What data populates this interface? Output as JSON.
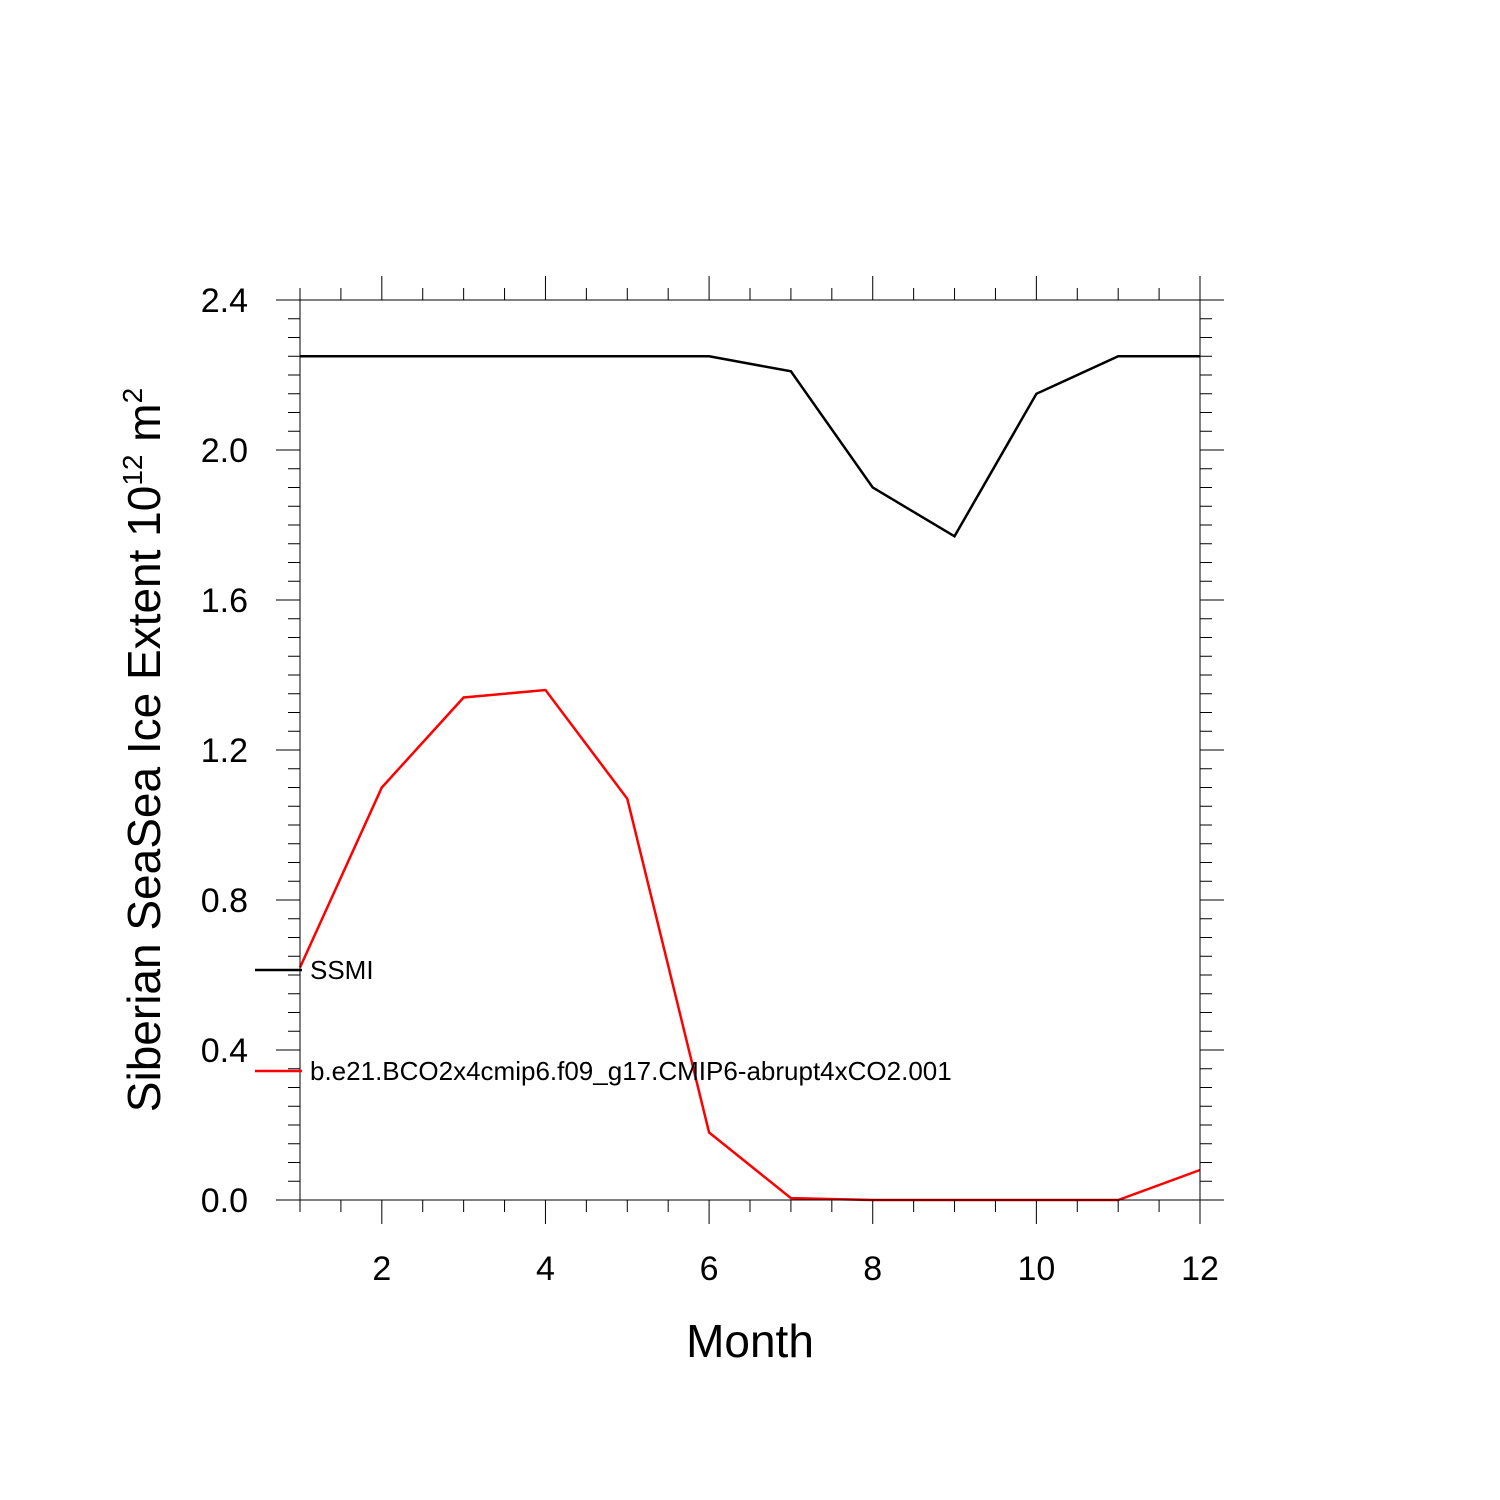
{
  "chart_data": {
    "type": "line",
    "xlabel": "Month",
    "ylabel": {
      "text": "Siberian SeaSea Ice Extent 10",
      "superscript": "12",
      "unit": " m",
      "unit_superscript": "2"
    },
    "xlim": [
      1,
      12
    ],
    "ylim": [
      0,
      2.4
    ],
    "x_ticks": [
      2,
      4,
      6,
      8,
      10,
      12
    ],
    "y_ticks": [
      0.0,
      0.4,
      0.8,
      1.2,
      1.6,
      2.0,
      2.4
    ],
    "x_tick_labels": [
      "2",
      "4",
      "6",
      "8",
      "10",
      "12"
    ],
    "y_tick_labels": [
      "0.0",
      "0.4",
      "0.8",
      "1.2",
      "1.6",
      "2.0",
      "2.4"
    ],
    "x": [
      1,
      2,
      3,
      4,
      5,
      6,
      7,
      8,
      9,
      10,
      11,
      12
    ],
    "series": [
      {
        "name": "SSMI",
        "color": "#000000",
        "values": [
          2.25,
          2.25,
          2.25,
          2.25,
          2.25,
          2.25,
          2.21,
          1.9,
          1.77,
          2.15,
          2.25,
          2.25
        ]
      },
      {
        "name": "b.e21.BCO2x4cmip6.f09_g17.CMIP6-abrupt4xCO2.001",
        "color": "#ff0000",
        "values": [
          0.62,
          1.1,
          1.34,
          1.36,
          1.07,
          0.18,
          0.005,
          0.0,
          0.0,
          0.0,
          0.0,
          0.08
        ]
      }
    ],
    "legend": "inside-left",
    "grid": false
  }
}
